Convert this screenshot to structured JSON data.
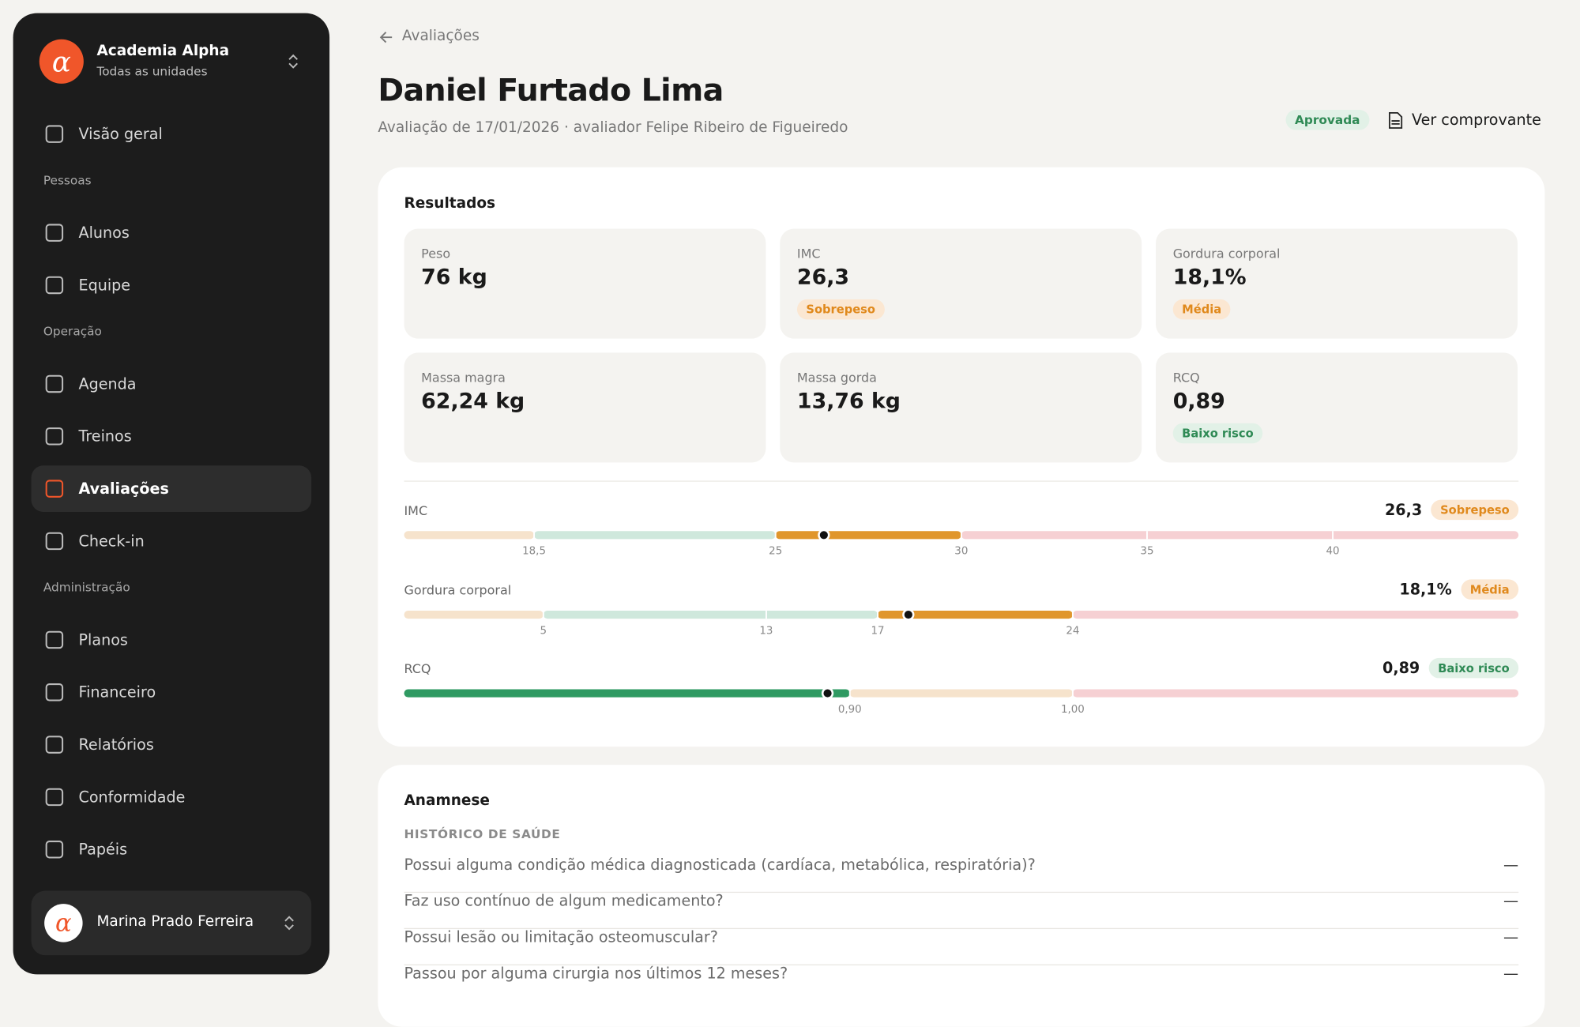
{
  "sidebar": {
    "logo_glyph": "α",
    "brand": {
      "name": "Academia Alpha",
      "subtitle": "Todas as unidades"
    },
    "items": [
      "Visão geral"
    ],
    "groups": [
      {
        "title": "Pessoas",
        "items": [
          "Alunos",
          "Equipe"
        ]
      },
      {
        "title": "Operação",
        "items": [
          "Agenda",
          "Treinos",
          "Avaliações",
          "Check-in"
        ]
      },
      {
        "title": "Administração",
        "items": [
          "Planos",
          "Financeiro",
          "Relatórios",
          "Conformidade",
          "Papéis"
        ]
      }
    ],
    "active": "Avaliações",
    "user": "Marina Prado Ferreira"
  },
  "header": {
    "back": "Avaliações",
    "title": "Daniel Furtado Lima",
    "subtitle": "Avaliação de 17/01/2026 · avaliador Felipe Ribeiro de Figueiredo",
    "status": "Aprovada",
    "action": "Ver comprovante"
  },
  "results": {
    "title": "Resultados",
    "metrics": [
      {
        "label": "Peso",
        "value": "76 kg"
      },
      {
        "label": "IMC",
        "value": "26,3",
        "badge": "Sobrepeso",
        "tone": "warning"
      },
      {
        "label": "Gordura corporal",
        "value": "18,1%",
        "badge": "Média",
        "tone": "warning"
      },
      {
        "label": "Massa magra",
        "value": "62,24 kg"
      },
      {
        "label": "Massa gorda",
        "value": "13,76 kg"
      },
      {
        "label": "RCQ",
        "value": "0,89",
        "badge": "Baixo risco",
        "tone": "success"
      }
    ],
    "gauges": [
      {
        "label": "IMC",
        "value": 26.3,
        "value_label": "26,3",
        "status": "Sobrepeso",
        "tone": "warning",
        "xlim": [
          15,
          45
        ],
        "ticks": [
          {
            "value": 18.5,
            "label": "18,5"
          },
          25,
          30,
          35,
          40
        ],
        "segments": [
          {
            "from": 15,
            "to": 18.5,
            "color": "#f6e3cc"
          },
          {
            "from": 18.5,
            "to": 25,
            "color": "#cfe8dc"
          },
          {
            "from": 25,
            "to": 30,
            "color": "#e0962c"
          },
          {
            "from": 30,
            "to": 45,
            "color": "#f6d0d3"
          }
        ]
      },
      {
        "label": "Gordura corporal",
        "value": 18.1,
        "value_label": "18,1%",
        "status": "Média",
        "tone": "warning",
        "xlim": [
          0,
          40
        ],
        "ticks": [
          5,
          13,
          17,
          24
        ],
        "segments": [
          {
            "from": 0,
            "to": 5,
            "color": "#f6e3cc"
          },
          {
            "from": 5,
            "to": 17,
            "color": "#cfe8dc"
          },
          {
            "from": 17,
            "to": 24,
            "color": "#e0962c"
          },
          {
            "from": 24,
            "to": 40,
            "color": "#f6d0d3"
          }
        ]
      },
      {
        "label": "RCQ",
        "value": 0.89,
        "value_label": "0,89",
        "status": "Baixo risco",
        "tone": "success",
        "xlim": [
          0.7,
          1.2
        ],
        "ticks": [
          {
            "value": 0.9,
            "label": "0,90"
          },
          {
            "value": 1,
            "label": "1,00"
          }
        ],
        "segments": [
          {
            "from": 0.7,
            "to": 0.9,
            "color": "#2f9a62"
          },
          {
            "from": 0.9,
            "to": 1,
            "color": "#f6e3cc"
          },
          {
            "from": 1,
            "to": 1.2,
            "color": "#f6d0d3"
          }
        ]
      }
    ]
  },
  "anamnese": {
    "title": "Anamnese",
    "section": "HISTÓRICO DE SAÚDE",
    "questions": [
      {
        "text": "Possui alguma condição médica diagnosticada (cardíaca, metabólica, respiratória)?",
        "answer": "—"
      },
      {
        "text": "Faz uso contínuo de algum medicamento?",
        "answer": "—"
      },
      {
        "text": "Possui lesão ou limitação osteomuscular?",
        "answer": "—"
      },
      {
        "text": "Passou por alguma cirurgia nos últimos 12 meses?",
        "answer": "—"
      }
    ]
  }
}
